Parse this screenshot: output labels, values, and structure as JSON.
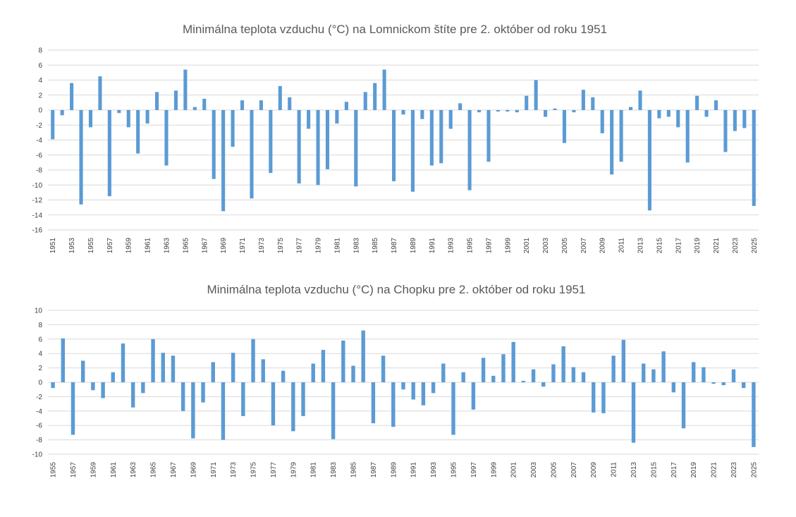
{
  "colors": {
    "bar": "#5b9bd5",
    "grid": "#d9d9d9",
    "text": "#404040",
    "title": "#595959"
  },
  "chart_data": [
    {
      "type": "bar",
      "title": "Minimálna teplota vzduchu (°C) na Lomnickom štíte pre 2. október od roku 1951",
      "xlabel": "",
      "ylabel": "",
      "ylim": [
        -16,
        8
      ],
      "yticks": [
        8,
        6,
        4,
        2,
        0,
        -2,
        -4,
        -6,
        -8,
        -10,
        -12,
        -14,
        -16
      ],
      "grid": true,
      "categories": [
        1951,
        1952,
        1953,
        1954,
        1955,
        1956,
        1957,
        1958,
        1959,
        1960,
        1961,
        1962,
        1963,
        1964,
        1965,
        1966,
        1967,
        1968,
        1969,
        1970,
        1971,
        1972,
        1973,
        1974,
        1975,
        1976,
        1977,
        1978,
        1979,
        1980,
        1981,
        1982,
        1983,
        1984,
        1985,
        1986,
        1987,
        1988,
        1989,
        1990,
        1991,
        1992,
        1993,
        1994,
        1995,
        1996,
        1997,
        1998,
        1999,
        2000,
        2001,
        2002,
        2003,
        2004,
        2005,
        2006,
        2007,
        2008,
        2009,
        2010,
        2011,
        2012,
        2013,
        2014,
        2015,
        2016,
        2017,
        2018,
        2019,
        2020,
        2021,
        2022,
        2023,
        2024,
        2025
      ],
      "xticks": [
        "1951",
        "1953",
        "1955",
        "1957",
        "1959",
        "1961",
        "1963",
        "1965",
        "1967",
        "1969",
        "1971",
        "1973",
        "1975",
        "1977",
        "1979",
        "1981",
        "1983",
        "1985",
        "1987",
        "1989",
        "1991",
        "1993",
        "1995",
        "1997",
        "1999",
        "2001",
        "2003",
        "2005",
        "2007",
        "2009",
        "2011",
        "2013",
        "2015",
        "2017",
        "2019",
        "2021",
        "2023",
        "2025"
      ],
      "values": [
        -3.9,
        -0.7,
        3.6,
        -12.6,
        -2.3,
        4.5,
        -11.5,
        -0.4,
        -2.3,
        -5.8,
        -1.8,
        2.4,
        -7.4,
        2.6,
        5.4,
        0.4,
        1.5,
        -9.2,
        -13.5,
        -4.9,
        1.3,
        -11.8,
        1.3,
        -8.4,
        3.2,
        1.7,
        -9.8,
        -2.5,
        -10.0,
        -7.9,
        -1.8,
        1.1,
        -10.2,
        2.4,
        3.6,
        5.4,
        -9.5,
        -0.6,
        -10.9,
        -1.2,
        -7.4,
        -7.1,
        -2.5,
        0.9,
        -10.7,
        -0.3,
        -6.9,
        -0.2,
        -0.2,
        -0.3,
        1.9,
        4.0,
        -0.9,
        0.2,
        -4.4,
        -0.3,
        2.7,
        1.7,
        -3.1,
        -8.6,
        -6.9,
        0.4,
        2.6,
        -13.4,
        -1.1,
        -0.9,
        -2.3,
        -7.0,
        1.9,
        -0.9,
        1.3,
        -5.6,
        -2.8,
        -2.4,
        -12.8
      ]
    },
    {
      "type": "bar",
      "title": "Minimálna teplota vzduchu (°C) na Chopku pre 2. október od roku 1951",
      "xlabel": "",
      "ylabel": "",
      "ylim": [
        -10,
        10
      ],
      "yticks": [
        10,
        8,
        6,
        4,
        2,
        0,
        -2,
        -4,
        -6,
        -8,
        -10
      ],
      "grid": true,
      "categories": [
        1955,
        1956,
        1957,
        1958,
        1959,
        1960,
        1961,
        1962,
        1963,
        1964,
        1965,
        1966,
        1967,
        1968,
        1969,
        1970,
        1971,
        1972,
        1973,
        1974,
        1975,
        1976,
        1977,
        1978,
        1979,
        1980,
        1981,
        1982,
        1983,
        1984,
        1985,
        1986,
        1987,
        1988,
        1989,
        1990,
        1991,
        1992,
        1993,
        1994,
        1995,
        1996,
        1997,
        1998,
        1999,
        2000,
        2001,
        2002,
        2003,
        2004,
        2005,
        2006,
        2007,
        2008,
        2009,
        2010,
        2011,
        2012,
        2013,
        2014,
        2015,
        2016,
        2017,
        2018,
        2019,
        2020,
        2021,
        2022,
        2023,
        2024,
        2025
      ],
      "xticks": [
        "1955",
        "1957",
        "1959",
        "1961",
        "1963",
        "1965",
        "1967",
        "1969",
        "1971",
        "1973",
        "1975",
        "1977",
        "1979",
        "1981",
        "1983",
        "1985",
        "1987",
        "1989",
        "1991",
        "1993",
        "1995",
        "1997",
        "1999",
        "2001",
        "2003",
        "2005",
        "2007",
        "2009",
        "2011",
        "2013",
        "2015",
        "2017",
        "2019",
        "2021",
        "2023",
        "2025"
      ],
      "values": [
        -0.8,
        6.1,
        -7.3,
        3.0,
        -1.1,
        -2.2,
        1.4,
        5.4,
        -3.5,
        -1.5,
        6.0,
        4.1,
        3.7,
        -4.0,
        -7.8,
        -2.8,
        2.8,
        -8.0,
        4.1,
        -4.7,
        6.0,
        3.2,
        -6.0,
        1.6,
        -6.8,
        -4.7,
        2.6,
        4.5,
        -7.9,
        5.8,
        2.3,
        7.2,
        -5.7,
        3.7,
        -6.2,
        -1.0,
        -2.4,
        -3.2,
        -1.5,
        2.6,
        -7.3,
        1.4,
        -3.8,
        3.4,
        0.9,
        3.9,
        5.6,
        0.2,
        1.8,
        -0.6,
        2.5,
        5.0,
        2.1,
        1.4,
        -4.2,
        -4.3,
        3.7,
        5.9,
        -8.4,
        2.6,
        1.8,
        4.3,
        -1.4,
        -6.4,
        2.8,
        2.1,
        -0.2,
        -0.4,
        1.8,
        -0.8,
        -9.0
      ]
    }
  ]
}
